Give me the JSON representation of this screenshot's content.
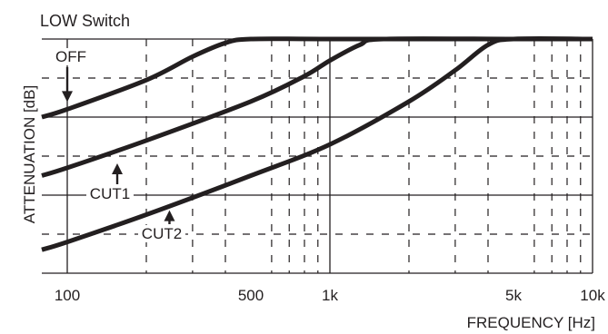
{
  "chart_data": {
    "type": "line",
    "title": "LOW Switch",
    "xlabel": "FREQUENCY [Hz]",
    "ylabel": "ATTENUATION [dB]",
    "x_scale": "log",
    "xlim": [
      80,
      10000
    ],
    "ylim": [
      -6,
      0
    ],
    "grid": true,
    "x_ticks": [
      {
        "value": 100,
        "label": "100"
      },
      {
        "value": 500,
        "label": "500"
      },
      {
        "value": 1000,
        "label": "1k"
      },
      {
        "value": 5000,
        "label": "5k"
      },
      {
        "value": 10000,
        "label": "10k"
      }
    ],
    "series": [
      {
        "name": "OFF",
        "x": [
          80,
          100,
          200,
          300,
          400,
          500,
          1000,
          5000,
          10000
        ],
        "y": [
          -2.0,
          -1.8,
          -1.05,
          -0.45,
          -0.1,
          0,
          0,
          0,
          0
        ]
      },
      {
        "name": "CUT1",
        "x": [
          80,
          100,
          200,
          500,
          800,
          1000,
          1300,
          1600,
          5000,
          10000
        ],
        "y": [
          -3.5,
          -3.3,
          -2.6,
          -1.6,
          -0.95,
          -0.55,
          -0.15,
          0,
          0,
          0
        ]
      },
      {
        "name": "CUT2",
        "x": [
          80,
          100,
          200,
          500,
          1000,
          2000,
          3000,
          4000,
          5000,
          10000
        ],
        "y": [
          -5.4,
          -5.2,
          -4.5,
          -3.5,
          -2.7,
          -1.6,
          -0.8,
          -0.15,
          0,
          0
        ]
      }
    ],
    "annotations": [
      {
        "text": "OFF",
        "x": 100,
        "y": -1.8
      },
      {
        "text": "CUT1",
        "x": 155,
        "y": -3.0
      },
      {
        "text": "CUT2",
        "x": 245,
        "y": -4.2
      }
    ]
  }
}
